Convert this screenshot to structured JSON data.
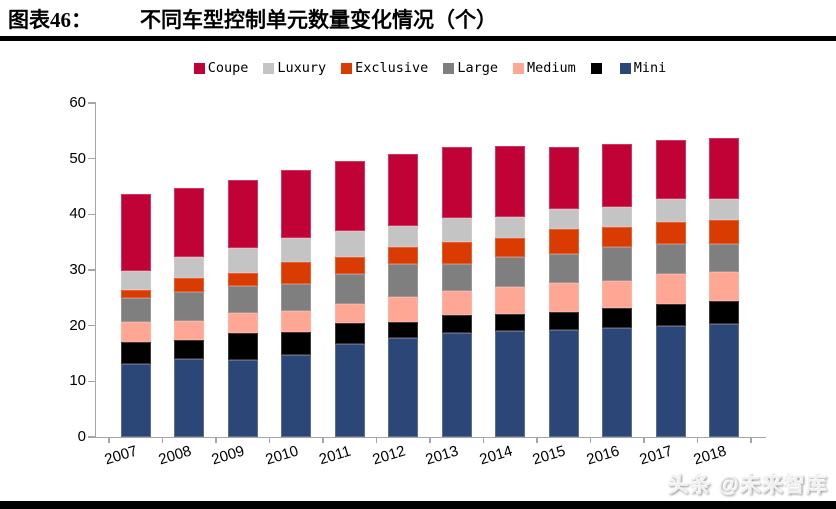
{
  "header": {
    "label": "图表46：",
    "title": "不同车型控制单元数量变化情况（个）"
  },
  "watermark": "头条 @未来智库",
  "chart_data": {
    "type": "bar",
    "stacked": true,
    "title": "不同车型控制单元数量变化情况（个）",
    "categories": [
      "2007",
      "2008",
      "2009",
      "2010",
      "2011",
      "2012",
      "2013",
      "2014",
      "2015",
      "2016",
      "2017",
      "2018"
    ],
    "series": [
      {
        "name": "Mini",
        "color": "#2A4777",
        "values": [
          13.2,
          14.0,
          13.9,
          14.7,
          16.7,
          17.7,
          18.6,
          19.1,
          19.3,
          19.5,
          19.9,
          20.3
        ]
      },
      {
        "name": "",
        "color": "#000000",
        "values": [
          3.8,
          3.4,
          4.7,
          4.1,
          3.7,
          2.9,
          3.3,
          3.0,
          3.1,
          3.6,
          4.0,
          4.2
        ]
      },
      {
        "name": "Medium",
        "color": "#FFA795",
        "values": [
          3.6,
          3.5,
          3.6,
          3.8,
          3.5,
          4.6,
          4.3,
          4.8,
          5.2,
          5.0,
          5.4,
          5.2
        ]
      },
      {
        "name": "Large",
        "color": "#7F7F7F",
        "values": [
          4.3,
          5.1,
          4.9,
          4.9,
          5.4,
          5.8,
          4.9,
          5.5,
          5.2,
          6.1,
          5.4,
          5.0
        ]
      },
      {
        "name": "Exclusive",
        "color": "#D93B01",
        "values": [
          1.5,
          2.5,
          2.3,
          4.0,
          3.1,
          3.2,
          4.0,
          3.3,
          4.6,
          3.6,
          3.9,
          4.2
        ]
      },
      {
        "name": "Luxury",
        "color": "#C4C4C4",
        "values": [
          3.5,
          3.9,
          4.5,
          4.3,
          4.6,
          3.7,
          4.3,
          3.9,
          3.6,
          3.6,
          4.1,
          3.9
        ]
      },
      {
        "name": "Coupe",
        "color": "#C10237",
        "values": [
          13.8,
          12.4,
          12.3,
          12.2,
          12.5,
          12.9,
          12.7,
          12.6,
          11.1,
          11.2,
          10.7,
          11.0
        ]
      }
    ],
    "totals": [
      43.7,
      44.8,
      46.2,
      48.0,
      49.5,
      50.8,
      52.1,
      52.2,
      52.1,
      52.6,
      53.4,
      53.8
    ],
    "legend": [
      {
        "label": "Coupe",
        "color": "#C10237"
      },
      {
        "label": "Luxury",
        "color": "#C4C4C4"
      },
      {
        "label": "Exclusive",
        "color": "#D93B01"
      },
      {
        "label": "Large",
        "color": "#7F7F7F"
      },
      {
        "label": "Medium",
        "color": "#FFA795"
      },
      {
        "label": "",
        "color": "#000000"
      },
      {
        "label": "Mini",
        "color": "#2A4777"
      }
    ],
    "xlabel": "",
    "ylabel": "",
    "ylim": [
      0,
      60
    ],
    "yticks": [
      0,
      10,
      20,
      30,
      40,
      50,
      60
    ],
    "legend_position": "top",
    "grid": false
  }
}
